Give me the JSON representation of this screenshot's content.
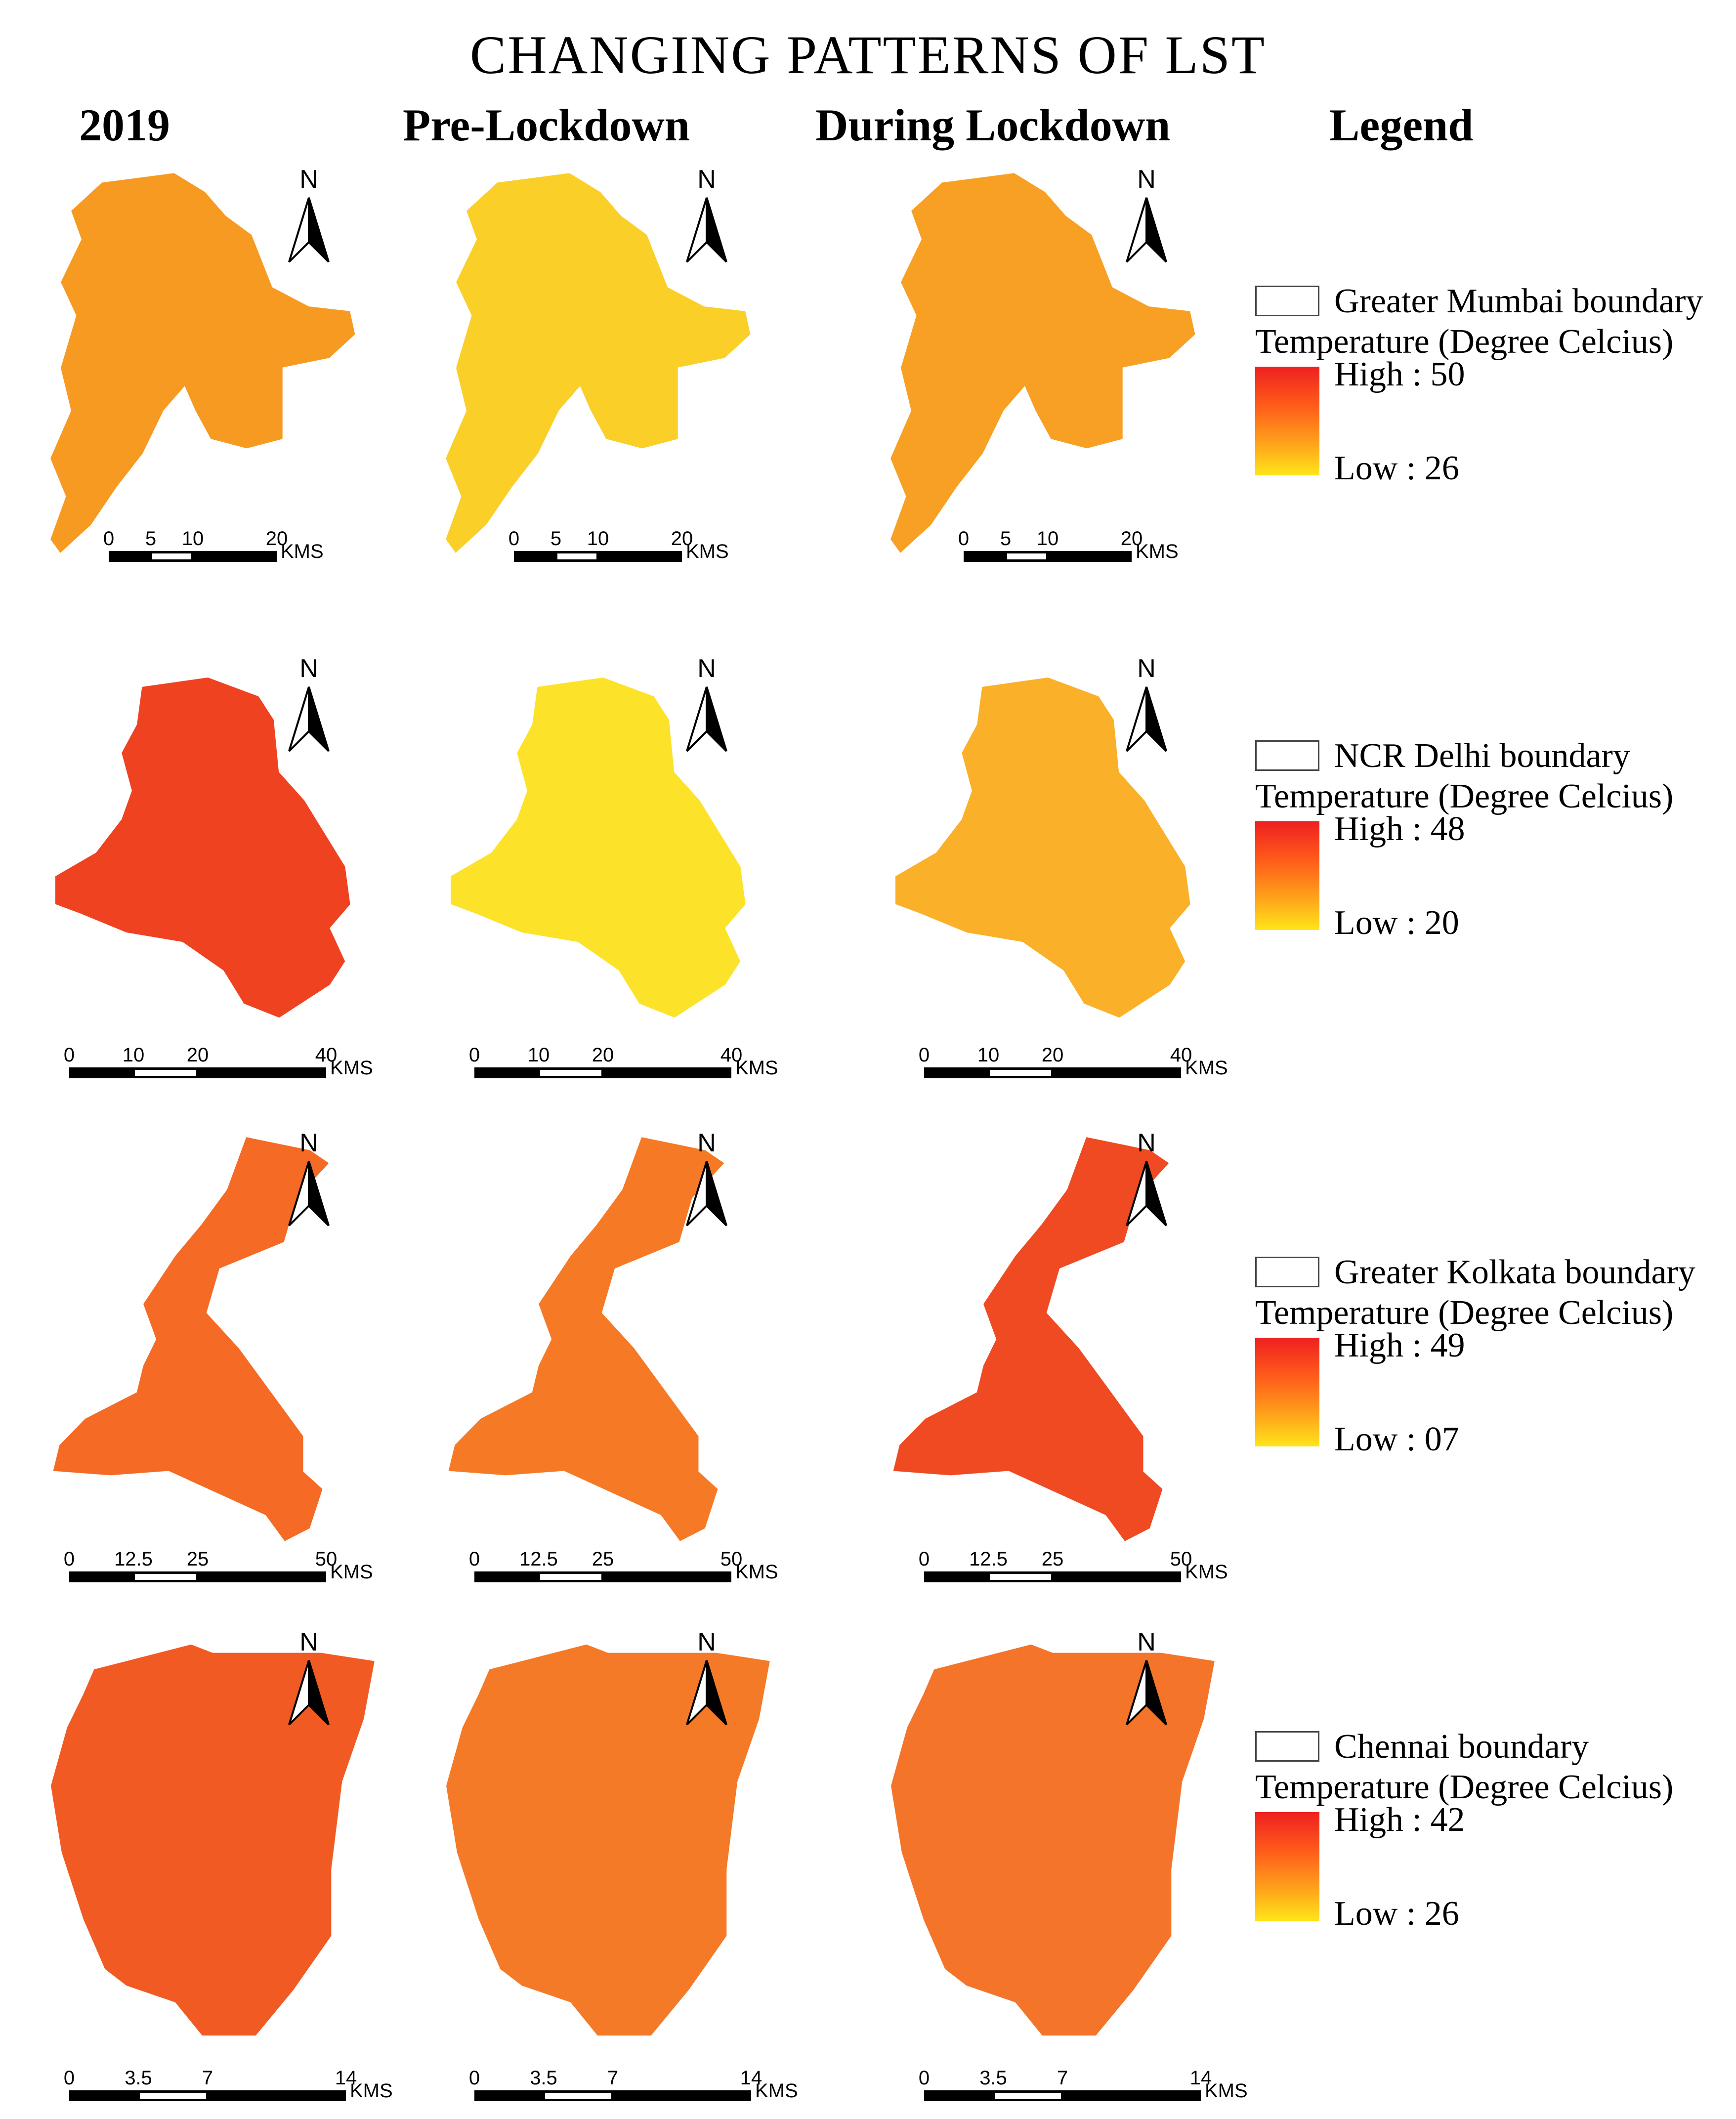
{
  "title": "CHANGING PATTERNS OF LST",
  "column_headers": [
    "2019",
    "Pre-Lockdown",
    "During Lockdown",
    "Legend"
  ],
  "cities": [
    {
      "name": "Greater Mumbai",
      "boundary_label": "Greater Mumbai boundary",
      "temperature_title": "Temperature (Degree Celcius)",
      "high_label": "High : 50",
      "low_label": "Low : 26",
      "scale_ticks": [
        "0",
        "5",
        "10",
        "20"
      ],
      "scale_unit": "KMS",
      "map_colors": [
        "#f79a22",
        "#f9cf28",
        "#f7a024"
      ]
    },
    {
      "name": "NCR Delhi",
      "boundary_label": "NCR Delhi boundary",
      "temperature_title": "Temperature (Degree Celcius)",
      "high_label": "High : 48",
      "low_label": "Low : 20",
      "scale_ticks": [
        "0",
        "10",
        "20",
        "40"
      ],
      "scale_unit": "KMS",
      "map_colors": [
        "#ee4221",
        "#fde22a",
        "#fbb02a"
      ]
    },
    {
      "name": "Greater Kolkata",
      "boundary_label": "Greater Kolkata boundary",
      "temperature_title": "Temperature (Degree Celcius)",
      "high_label": "High : 49",
      "low_label": "Low : 07",
      "scale_ticks": [
        "0",
        "12.5",
        "25",
        "50"
      ],
      "scale_unit": "KMS",
      "map_colors": [
        "#f56a25",
        "#f67a26",
        "#ef4a22"
      ]
    },
    {
      "name": "Chennai",
      "boundary_label": "Chennai boundary",
      "temperature_title": "Temperature (Degree Celcius)",
      "high_label": "High : 42",
      "low_label": "Low : 26",
      "scale_ticks": [
        "0",
        "3.5",
        "7",
        "14"
      ],
      "scale_unit": "KMS",
      "map_colors": [
        "#f25a24",
        "#f57a27",
        "#f4742a"
      ]
    }
  ],
  "north_arrow_label": "N"
}
